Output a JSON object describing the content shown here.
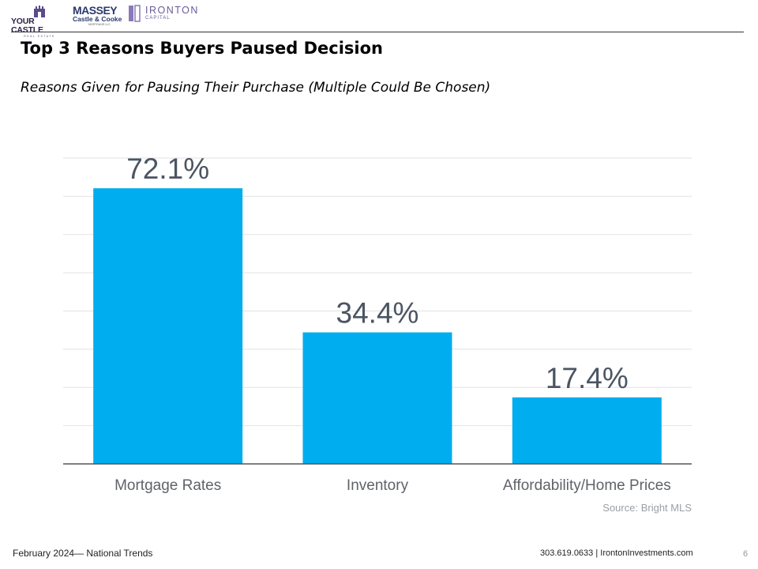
{
  "logos": {
    "your_castle": {
      "name": "YOUR CASTLE",
      "tagline": "REAL ESTATE"
    },
    "massey": {
      "name": "MASSEY",
      "line2": "Castle & Cooke",
      "line3": "MORTGAGE LLC"
    },
    "ironton": {
      "name": "IRONTON",
      "line2": "CAPITAL"
    }
  },
  "title": "Top 3 Reasons Buyers Paused Decision",
  "subtitle": "Reasons  Given for Pausing Their Purchase  (Multiple Could Be Chosen)",
  "colors": {
    "bar": "#00adee",
    "value_label": "#4b5563",
    "category_label": "#5f6368",
    "grid": "#e2e2e2",
    "axis": "#555555",
    "source": "#9aa0a6"
  },
  "chart_data": {
    "type": "bar",
    "categories": [
      "Mortgage Rates",
      "Inventory",
      "Affordability/Home Prices"
    ],
    "values": [
      72.1,
      34.4,
      17.4
    ],
    "value_labels": [
      "72.1%",
      "34.4%",
      "17.4%"
    ],
    "title": "",
    "xlabel": "",
    "ylabel": "",
    "ylim": [
      0,
      80
    ],
    "grid": true,
    "source": "Source: Bright MLS"
  },
  "footer": {
    "left": "February 2024— National Trends",
    "right": "303.619.0633 | IrontonInvestments.com",
    "page": "6"
  }
}
